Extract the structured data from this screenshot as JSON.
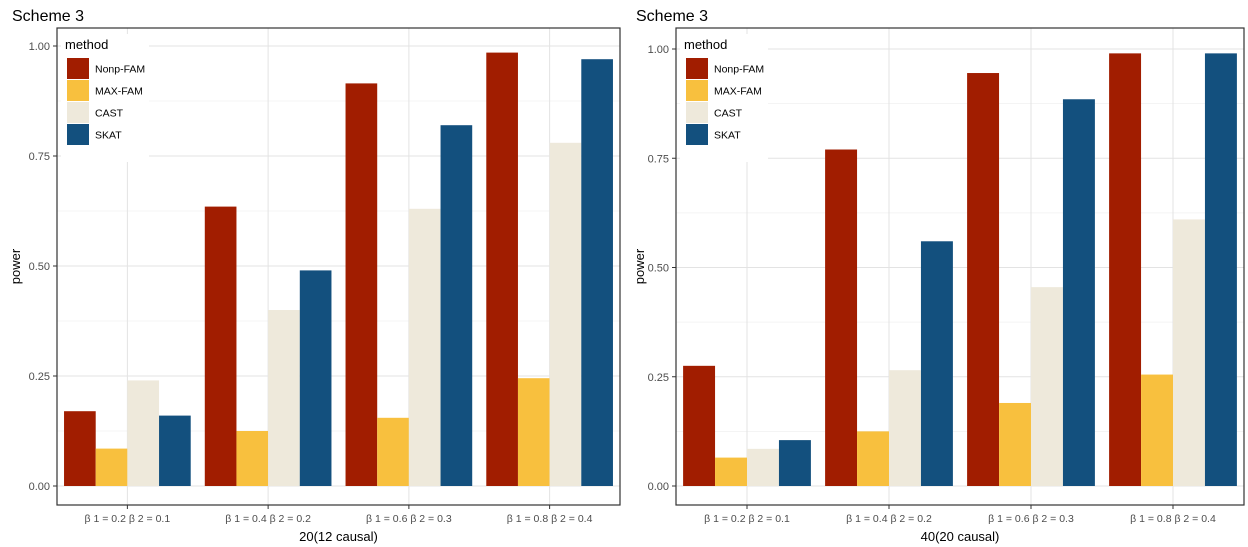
{
  "chart_data": [
    {
      "type": "bar",
      "title": "Scheme 3",
      "xlabel": "20(12 causal)",
      "ylabel": "power",
      "categories": [
        "β 1 = 0.2 β 2 = 0.1",
        "β 1 = 0.4 β 2 = 0.2",
        "β 1 = 0.6 β 2 = 0.3",
        "β 1 = 0.8 β 2 = 0.4"
      ],
      "yticks": [
        "0.00",
        "0.25",
        "0.50",
        "0.75",
        "1.00"
      ],
      "ylim": [
        0,
        1.0
      ],
      "grid": true,
      "legend_title": "method",
      "legend_position": "top-left inside",
      "series": [
        {
          "name": "Nonp-FAM",
          "color": "#A11D00",
          "values": [
            0.17,
            0.635,
            0.915,
            0.985
          ]
        },
        {
          "name": "MAX-FAM",
          "color": "#F8C03E",
          "values": [
            0.085,
            0.125,
            0.155,
            0.245
          ]
        },
        {
          "name": "CAST",
          "color": "#EEE9DB",
          "values": [
            0.24,
            0.4,
            0.63,
            0.78
          ]
        },
        {
          "name": "SKAT",
          "color": "#13507E",
          "values": [
            0.16,
            0.49,
            0.82,
            0.97
          ]
        }
      ]
    },
    {
      "type": "bar",
      "title": "Scheme 3",
      "xlabel": "40(20 causal)",
      "ylabel": "power",
      "categories": [
        "β 1 = 0.2 β 2 = 0.1",
        "β 1 = 0.4 β 2 = 0.2",
        "β 1 = 0.6 β 2 = 0.3",
        "β 1 = 0.8 β 2 = 0.4"
      ],
      "yticks": [
        "0.00",
        "0.25",
        "0.50",
        "0.75",
        "1.00"
      ],
      "ylim": [
        0,
        1.0
      ],
      "grid": true,
      "legend_title": "method",
      "legend_position": "top-left inside",
      "series": [
        {
          "name": "Nonp-FAM",
          "color": "#A11D00",
          "values": [
            0.275,
            0.77,
            0.945,
            0.99
          ]
        },
        {
          "name": "MAX-FAM",
          "color": "#F8C03E",
          "values": [
            0.065,
            0.125,
            0.19,
            0.255
          ]
        },
        {
          "name": "CAST",
          "color": "#EEE9DB",
          "values": [
            0.085,
            0.265,
            0.455,
            0.61
          ]
        },
        {
          "name": "SKAT",
          "color": "#13507E",
          "values": [
            0.105,
            0.56,
            0.885,
            0.99
          ]
        }
      ]
    }
  ]
}
